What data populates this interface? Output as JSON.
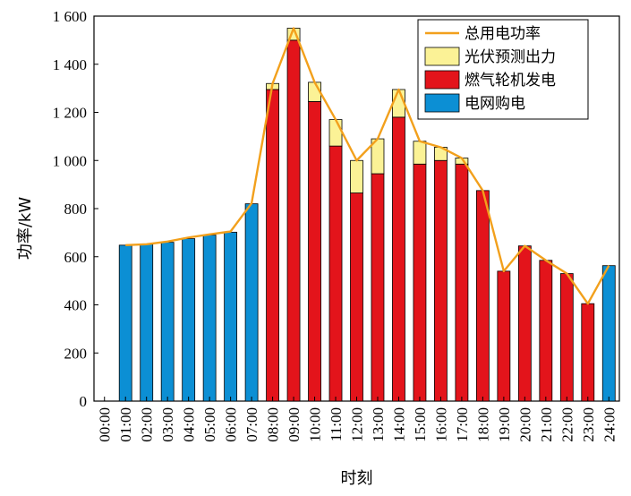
{
  "chart_data": {
    "type": "bar",
    "stacked": true,
    "title": "",
    "xlabel": "时刻",
    "ylabel": "功率/kW",
    "ylim": [
      0,
      1600
    ],
    "yticks": [
      0,
      200,
      400,
      600,
      800,
      1000,
      1200,
      1400,
      1600
    ],
    "ytick_labels": [
      "0",
      "200",
      "400",
      "600",
      "800",
      "1 000",
      "1 200",
      "1 400",
      "1 600"
    ],
    "categories": [
      "00:00",
      "01:00",
      "02:00",
      "03:00",
      "04:00",
      "05:00",
      "06:00",
      "07:00",
      "08:00",
      "09:00",
      "10:00",
      "11:00",
      "12:00",
      "13:00",
      "14:00",
      "15:00",
      "16:00",
      "17:00",
      "18:00",
      "19:00",
      "20:00",
      "21:00",
      "22:00",
      "23:00",
      "24:00"
    ],
    "legend_position": "top-right",
    "grid": false,
    "series": [
      {
        "name": "电网购电",
        "color": "#0c8fd4",
        "kind": "bar",
        "values": [
          0,
          648,
          652,
          660,
          675,
          690,
          702,
          820,
          0,
          0,
          0,
          0,
          0,
          0,
          0,
          0,
          0,
          0,
          0,
          0,
          0,
          0,
          0,
          0,
          563
        ]
      },
      {
        "name": "燃气轮机发电",
        "color": "#e3141b",
        "kind": "bar",
        "values": [
          0,
          0,
          0,
          0,
          0,
          0,
          0,
          0,
          1295,
          1500,
          1245,
          1060,
          865,
          945,
          1180,
          985,
          1000,
          985,
          875,
          540,
          645,
          585,
          530,
          405,
          0
        ]
      },
      {
        "name": "光伏预测出力",
        "color": "#fbf296",
        "kind": "bar",
        "values": [
          0,
          0,
          0,
          0,
          0,
          0,
          0,
          0,
          25,
          50,
          80,
          110,
          135,
          145,
          115,
          95,
          55,
          25,
          0,
          0,
          0,
          0,
          0,
          0,
          0
        ]
      },
      {
        "name": "总用电功率",
        "color": "#f2a01c",
        "kind": "line",
        "values": [
          null,
          648,
          652,
          663,
          680,
          693,
          705,
          822,
          1320,
          1550,
          1325,
          1170,
          1000,
          1090,
          1295,
          1080,
          1055,
          1010,
          875,
          540,
          645,
          585,
          530,
          405,
          563
        ]
      }
    ]
  }
}
